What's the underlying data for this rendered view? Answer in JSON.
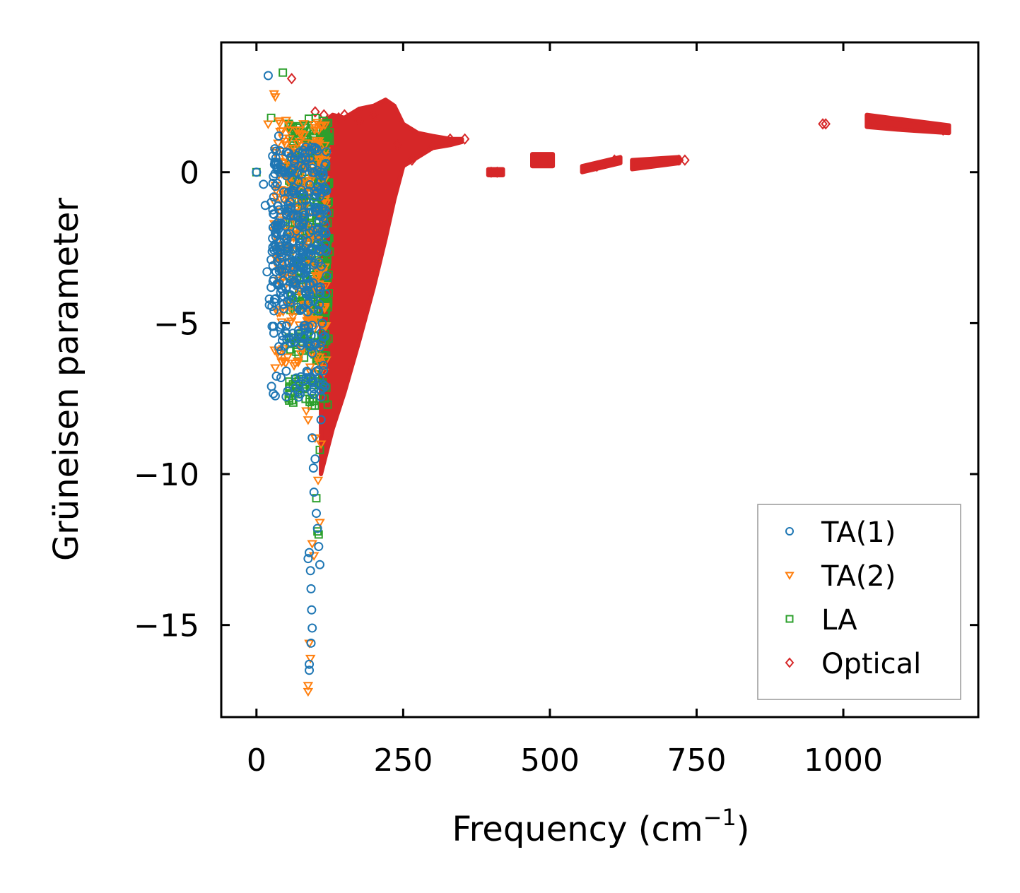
{
  "chart_data": {
    "type": "scatter",
    "title": "",
    "xlabel": "Frequency (cm",
    "xlabel_sup": "−1",
    "xlabel_end": ")",
    "ylabel": "Grüneisen parameter",
    "xlim": [
      -60,
      1230
    ],
    "ylim": [
      -18.05,
      4.3
    ],
    "xticks": [
      0,
      250,
      500,
      750,
      1000
    ],
    "xtick_labels": [
      "0",
      "250",
      "500",
      "750",
      "1000"
    ],
    "yticks": [
      0,
      -5,
      -10,
      -15
    ],
    "ytick_labels": [
      "0",
      "−5",
      "−10",
      "−15"
    ],
    "grid": false,
    "legend_position": "bottom-right",
    "series": [
      {
        "name": "TA(1)",
        "marker": "circle",
        "color": "#1f77b4",
        "points": [
          [
            0,
            0
          ],
          [
            12,
            -0.4
          ],
          [
            15,
            -1.1
          ],
          [
            20,
            3.2
          ],
          [
            18,
            -3.3
          ],
          [
            22,
            -4.2
          ],
          [
            22,
            -4.4
          ],
          [
            25,
            -2.9
          ],
          [
            28,
            -3.1
          ],
          [
            30,
            -1.4
          ],
          [
            35,
            -3.7
          ],
          [
            38,
            1.2
          ],
          [
            40,
            -2.3
          ],
          [
            45,
            -3.6
          ],
          [
            48,
            -2.6
          ],
          [
            55,
            -3.0
          ],
          [
            60,
            -2.9
          ],
          [
            65,
            -3.2
          ],
          [
            70,
            -1.5
          ],
          [
            75,
            -2.5
          ],
          [
            85,
            -3.3
          ],
          [
            90,
            -4.0
          ],
          [
            92,
            -5.7
          ],
          [
            95,
            -6.0
          ],
          [
            95,
            -8.8
          ],
          [
            97,
            -9.8
          ],
          [
            98,
            -10.6
          ],
          [
            100,
            -9.5
          ],
          [
            102,
            -11.3
          ],
          [
            104,
            -11.8
          ],
          [
            106,
            -12.4
          ],
          [
            108,
            -13.0
          ],
          [
            105,
            -7.0
          ],
          [
            110,
            -8.2
          ],
          [
            112,
            -5.0
          ],
          [
            114,
            -6.4
          ],
          [
            90,
            -12.6
          ],
          [
            92,
            -13.2
          ],
          [
            93,
            -13.8
          ],
          [
            94,
            -14.5
          ],
          [
            95,
            -15.1
          ],
          [
            93,
            -15.6
          ],
          [
            90,
            -16.3
          ],
          [
            90,
            -16.5
          ],
          [
            88,
            -12.8
          ]
        ],
        "cluster": {
          "x_range": [
            25,
            120
          ],
          "y_center": [
            0.4,
            -0.3,
            -1.0,
            -1.6,
            -2.2,
            -2.8,
            -3.4,
            -4.2,
            -5.5,
            -7.0
          ],
          "count": 420
        }
      },
      {
        "name": "TA(2)",
        "marker": "triangle-down",
        "color": "#ff7f0e",
        "points": [
          [
            20,
            1.6
          ],
          [
            30,
            2.6
          ],
          [
            32,
            2.5
          ],
          [
            38,
            1.7
          ],
          [
            45,
            0.7
          ],
          [
            55,
            1.4
          ],
          [
            60,
            0.8
          ],
          [
            65,
            -2.1
          ],
          [
            70,
            -1.8
          ],
          [
            85,
            -7.9
          ],
          [
            88,
            -8.2
          ],
          [
            90,
            -15.6
          ],
          [
            92,
            -16.1
          ],
          [
            88,
            -17.0
          ],
          [
            88,
            -17.2
          ],
          [
            95,
            -12.3
          ],
          [
            98,
            -12.7
          ],
          [
            100,
            -8.8
          ],
          [
            105,
            -10.2
          ],
          [
            108,
            -11.6
          ],
          [
            110,
            -9.0
          ],
          [
            112,
            -6.5
          ]
        ],
        "cluster": {
          "x_range": [
            30,
            120
          ],
          "y_center": [
            1.3,
            0.6,
            -0.2,
            -0.9,
            -1.7,
            -2.6,
            -3.5,
            -4.8,
            -6.2
          ],
          "count": 300
        }
      },
      {
        "name": "LA",
        "marker": "square",
        "color": "#2ca02c",
        "points": [
          [
            0,
            0
          ],
          [
            25,
            1.8
          ],
          [
            45,
            3.3
          ],
          [
            55,
            1.6
          ],
          [
            62,
            1.5
          ],
          [
            66,
            0.6
          ],
          [
            70,
            -1.4
          ],
          [
            100,
            -6.7
          ],
          [
            102,
            -10.8
          ],
          [
            104,
            -11.9
          ],
          [
            106,
            -12.0
          ],
          [
            108,
            -9.2
          ]
        ],
        "cluster": {
          "x_range": [
            55,
            125
          ],
          "y_center": [
            1.4,
            0.8,
            0.1,
            -0.6,
            -1.4,
            -2.3,
            -3.2,
            -4.4,
            -5.8,
            -7.3
          ],
          "count": 380
        }
      },
      {
        "name": "Optical",
        "marker": "diamond",
        "color": "#d62728",
        "points": [
          [
            60,
            3.1
          ],
          [
            100,
            2.0
          ],
          [
            115,
            1.9
          ],
          [
            140,
            1.8
          ],
          [
            150,
            1.9
          ],
          [
            175,
            1.7
          ],
          [
            200,
            1.9
          ],
          [
            240,
            0.9
          ],
          [
            265,
            0.4
          ],
          [
            300,
            0.9
          ],
          [
            330,
            1.1
          ],
          [
            355,
            1.1
          ],
          [
            400,
            0.0
          ],
          [
            410,
            0.0
          ],
          [
            480,
            0.4
          ],
          [
            500,
            0.4
          ],
          [
            580,
            0.2
          ],
          [
            610,
            0.4
          ],
          [
            720,
            0.4
          ],
          [
            730,
            0.4
          ],
          [
            965,
            1.6
          ],
          [
            970,
            1.6
          ],
          [
            1050,
            1.7
          ],
          [
            1170,
            1.4
          ]
        ],
        "filled_regions": [
          {
            "x": [
              110,
              130,
              150,
              175,
              200,
              220,
              235,
              250,
              275,
              300,
              330,
              350
            ],
            "y_upper": [
              1.6,
              1.9,
              1.8,
              2.1,
              2.2,
              2.4,
              2.2,
              1.6,
              1.3,
              1.2,
              1.1,
              1.1
            ],
            "y_lower": [
              -10.0,
              -8.5,
              -7.3,
              -5.6,
              -3.8,
              -2.2,
              -0.9,
              0.2,
              0.5,
              0.8,
              0.9,
              1.0
            ]
          },
          {
            "x": [
              395,
              420
            ],
            "y_upper": [
              0.1,
              0.1
            ],
            "y_lower": [
              -0.1,
              -0.1
            ]
          },
          {
            "x": [
              470,
              505
            ],
            "y_upper": [
              0.6,
              0.6
            ],
            "y_lower": [
              0.2,
              0.2
            ]
          },
          {
            "x": [
              555,
              620
            ],
            "y_upper": [
              0.2,
              0.5
            ],
            "y_lower": [
              0.0,
              0.3
            ]
          },
          {
            "x": [
              640,
              720
            ],
            "y_upper": [
              0.4,
              0.5
            ],
            "y_lower": [
              0.1,
              0.3
            ]
          },
          {
            "x": [
              1040,
              1100,
              1180
            ],
            "y_upper": [
              1.9,
              1.75,
              1.55
            ],
            "y_lower": [
              1.5,
              1.4,
              1.3
            ]
          }
        ]
      }
    ]
  }
}
